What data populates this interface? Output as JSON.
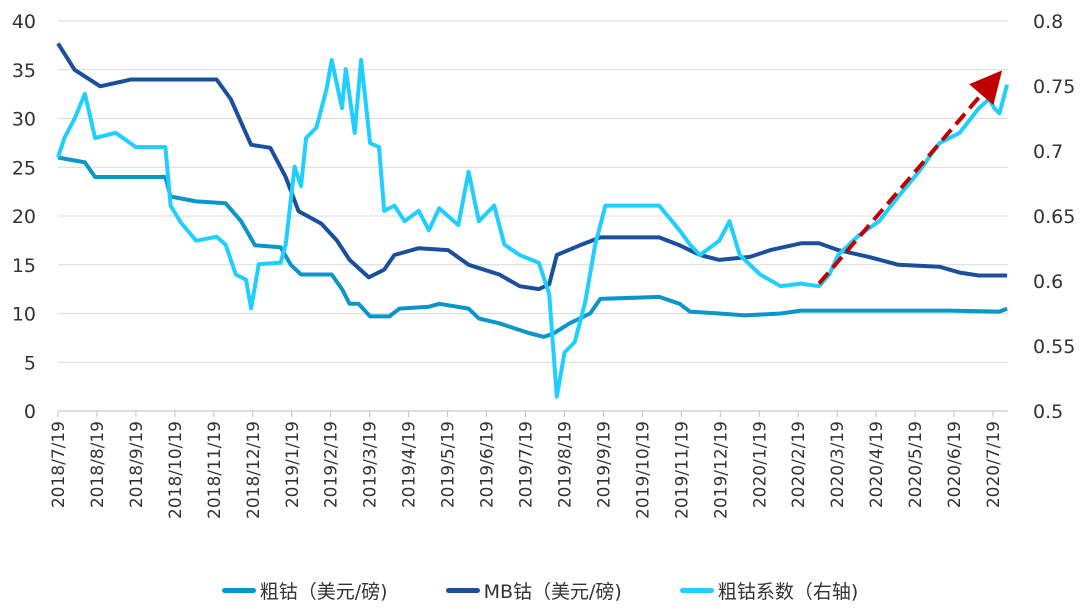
{
  "chart_data": {
    "type": "line",
    "title": "",
    "xlabel": "",
    "ylabel": "",
    "y_left": {
      "range": [
        0,
        40
      ],
      "ticks": [
        "0",
        "5",
        "10",
        "15",
        "20",
        "25",
        "30",
        "35",
        "40"
      ]
    },
    "y_right": {
      "range": [
        0.5,
        0.8
      ],
      "ticks": [
        "0.5",
        "0.55",
        "0.6",
        "0.65",
        "0.7",
        "0.75",
        "0.8"
      ]
    },
    "x_ticks": [
      "2018/7/19",
      "2018/8/19",
      "2018/9/19",
      "2018/10/19",
      "2018/11/19",
      "2018/12/19",
      "2019/1/19",
      "2019/2/19",
      "2019/3/19",
      "2019/4/19",
      "2019/5/19",
      "2019/6/19",
      "2019/7/19",
      "2019/8/19",
      "2019/9/19",
      "2019/10/19",
      "2019/11/19",
      "2019/12/19",
      "2020/1/19",
      "2020/2/19",
      "2020/3/19",
      "2020/4/19",
      "2020/5/19",
      "2020/6/19",
      "2020/7/19"
    ],
    "grid": "horizontal",
    "legend_placement": "bottom",
    "series": [
      {
        "name": "粗钴（美元/磅)",
        "axis": "left",
        "color": "#0A96C8",
        "points": [
          [
            "2018-07-19",
            26
          ],
          [
            "2018-08-09",
            25.5
          ],
          [
            "2018-08-17",
            24
          ],
          [
            "2018-10-11",
            24
          ],
          [
            "2018-10-15",
            22
          ],
          [
            "2018-11-04",
            21.5
          ],
          [
            "2018-11-27",
            21.3
          ],
          [
            "2018-12-09",
            19.5
          ],
          [
            "2018-12-20",
            17
          ],
          [
            "2019-01-09",
            16.8
          ],
          [
            "2019-01-17",
            15
          ],
          [
            "2019-01-25",
            14
          ],
          [
            "2019-02-18",
            14
          ],
          [
            "2019-02-26",
            12.5
          ],
          [
            "2019-03-04",
            11
          ],
          [
            "2019-03-11",
            11
          ],
          [
            "2019-03-20",
            9.7
          ],
          [
            "2019-04-04",
            9.7
          ],
          [
            "2019-04-12",
            10.5
          ],
          [
            "2019-05-05",
            10.7
          ],
          [
            "2019-05-13",
            11
          ],
          [
            "2019-06-05",
            10.5
          ],
          [
            "2019-06-13",
            9.5
          ],
          [
            "2019-06-29",
            9
          ],
          [
            "2019-07-22",
            8
          ],
          [
            "2019-08-03",
            7.6
          ],
          [
            "2019-08-11",
            8
          ],
          [
            "2019-08-23",
            9
          ],
          [
            "2019-09-08",
            10
          ],
          [
            "2019-09-16",
            11.5
          ],
          [
            "2019-11-01",
            11.7
          ],
          [
            "2019-11-17",
            11
          ],
          [
            "2019-11-25",
            10.2
          ],
          [
            "2019-12-18",
            10
          ],
          [
            "2020-01-07",
            9.8
          ],
          [
            "2020-02-04",
            10
          ],
          [
            "2020-02-20",
            10.3
          ],
          [
            "2020-06-15",
            10.3
          ],
          [
            "2020-07-24",
            10.2
          ],
          [
            "2020-07-30",
            10.5
          ]
        ]
      },
      {
        "name": "MB钴（美元/磅)",
        "axis": "left",
        "color": "#1A4F9E",
        "points": [
          [
            "2018-07-19",
            37.7
          ],
          [
            "2018-08-01",
            35
          ],
          [
            "2018-08-21",
            33.3
          ],
          [
            "2018-09-14",
            34
          ],
          [
            "2018-11-20",
            34
          ],
          [
            "2018-12-01",
            32
          ],
          [
            "2018-12-17",
            27.3
          ],
          [
            "2019-01-01",
            27
          ],
          [
            "2019-01-13",
            24
          ],
          [
            "2019-01-23",
            20.5
          ],
          [
            "2019-02-10",
            19.2
          ],
          [
            "2019-02-22",
            17.5
          ],
          [
            "2019-03-04",
            15.5
          ],
          [
            "2019-03-19",
            13.7
          ],
          [
            "2019-03-31",
            14.5
          ],
          [
            "2019-04-08",
            16
          ],
          [
            "2019-04-27",
            16.7
          ],
          [
            "2019-05-20",
            16.5
          ],
          [
            "2019-06-05",
            15
          ],
          [
            "2019-06-29",
            14
          ],
          [
            "2019-07-15",
            12.8
          ],
          [
            "2019-07-30",
            12.5
          ],
          [
            "2019-08-07",
            13
          ],
          [
            "2019-08-13",
            16
          ],
          [
            "2019-08-31",
            17
          ],
          [
            "2019-09-16",
            17.8
          ],
          [
            "2019-11-01",
            17.8
          ],
          [
            "2019-11-17",
            17
          ],
          [
            "2019-12-03",
            16
          ],
          [
            "2019-12-18",
            15.5
          ],
          [
            "2020-01-11",
            15.8
          ],
          [
            "2020-01-27",
            16.5
          ],
          [
            "2020-02-20",
            17.2
          ],
          [
            "2020-03-05",
            17.2
          ],
          [
            "2020-03-20",
            16.5
          ],
          [
            "2020-04-13",
            15.8
          ],
          [
            "2020-05-06",
            15
          ],
          [
            "2020-06-07",
            14.8
          ],
          [
            "2020-06-23",
            14.2
          ],
          [
            "2020-07-08",
            13.9
          ],
          [
            "2020-07-30",
            13.9
          ]
        ]
      },
      {
        "name": "粗钴系数（右轴)",
        "axis": "right",
        "color": "#1FCFFF",
        "points": [
          [
            "2018-07-19",
            0.695
          ],
          [
            "2018-07-24",
            0.71
          ],
          [
            "2018-08-01",
            0.725
          ],
          [
            "2018-08-09",
            0.744
          ],
          [
            "2018-08-17",
            0.71
          ],
          [
            "2018-09-02",
            0.714
          ],
          [
            "2018-09-18",
            0.703
          ],
          [
            "2018-10-11",
            0.703
          ],
          [
            "2018-10-15",
            0.658
          ],
          [
            "2018-10-23",
            0.645
          ],
          [
            "2018-11-04",
            0.631
          ],
          [
            "2018-11-20",
            0.634
          ],
          [
            "2018-11-27",
            0.628
          ],
          [
            "2018-12-05",
            0.605
          ],
          [
            "2018-12-13",
            0.601
          ],
          [
            "2018-12-17",
            0.579
          ],
          [
            "2018-12-23",
            0.613
          ],
          [
            "2019-01-09",
            0.614
          ],
          [
            "2019-01-13",
            0.628
          ],
          [
            "2019-01-20",
            0.688
          ],
          [
            "2019-01-25",
            0.673
          ],
          [
            "2019-01-29",
            0.71
          ],
          [
            "2019-02-06",
            0.718
          ],
          [
            "2019-02-14",
            0.748
          ],
          [
            "2019-02-18",
            0.77
          ],
          [
            "2019-02-26",
            0.733
          ],
          [
            "2019-03-01",
            0.763
          ],
          [
            "2019-03-08",
            0.714
          ],
          [
            "2019-03-13",
            0.77
          ],
          [
            "2019-03-20",
            0.706
          ],
          [
            "2019-03-27",
            0.703
          ],
          [
            "2019-03-31",
            0.654
          ],
          [
            "2019-04-08",
            0.658
          ],
          [
            "2019-04-16",
            0.646
          ],
          [
            "2019-04-27",
            0.654
          ],
          [
            "2019-05-05",
            0.639
          ],
          [
            "2019-05-13",
            0.656
          ],
          [
            "2019-05-28",
            0.643
          ],
          [
            "2019-06-05",
            0.684
          ],
          [
            "2019-06-13",
            0.646
          ],
          [
            "2019-06-25",
            0.658
          ],
          [
            "2019-07-03",
            0.628
          ],
          [
            "2019-07-15",
            0.62
          ],
          [
            "2019-07-30",
            0.614
          ],
          [
            "2019-08-07",
            0.59
          ],
          [
            "2019-08-13",
            0.511
          ],
          [
            "2019-08-19",
            0.545
          ],
          [
            "2019-08-27",
            0.553
          ],
          [
            "2019-09-04",
            0.583
          ],
          [
            "2019-09-12",
            0.628
          ],
          [
            "2019-09-20",
            0.658
          ],
          [
            "2019-11-01",
            0.658
          ],
          [
            "2019-11-17",
            0.639
          ],
          [
            "2019-11-25",
            0.628
          ],
          [
            "2019-12-03",
            0.62
          ],
          [
            "2019-12-18",
            0.631
          ],
          [
            "2019-12-26",
            0.646
          ],
          [
            "2020-01-03",
            0.62
          ],
          [
            "2020-01-19",
            0.605
          ],
          [
            "2020-02-04",
            0.596
          ],
          [
            "2020-02-20",
            0.598
          ],
          [
            "2020-03-05",
            0.596
          ],
          [
            "2020-03-13",
            0.605
          ],
          [
            "2020-03-20",
            0.62
          ],
          [
            "2020-04-05",
            0.635
          ],
          [
            "2020-04-21",
            0.646
          ],
          [
            "2020-05-06",
            0.665
          ],
          [
            "2020-05-22",
            0.684
          ],
          [
            "2020-06-07",
            0.706
          ],
          [
            "2020-06-23",
            0.714
          ],
          [
            "2020-07-08",
            0.733
          ],
          [
            "2020-07-16",
            0.74
          ],
          [
            "2020-07-20",
            0.733
          ],
          [
            "2020-07-24",
            0.729
          ],
          [
            "2020-07-30",
            0.751
          ]
        ]
      }
    ],
    "annotations": [
      {
        "type": "dashed-arrow",
        "axis": "right",
        "color": "#C00000",
        "from": [
          "2020-03-05",
          0.598
        ],
        "to": [
          "2020-07-20",
          0.755
        ]
      }
    ]
  }
}
